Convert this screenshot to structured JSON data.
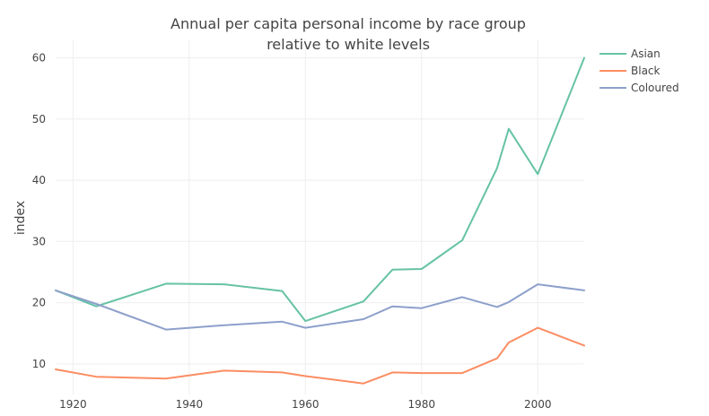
{
  "chart_data": {
    "type": "line",
    "title_lines": [
      "Annual per capita personal income by race group",
      "relative to white levels"
    ],
    "xlabel": "",
    "ylabel": "index",
    "xlim": [
      1917,
      2008
    ],
    "ylim": [
      5,
      63
    ],
    "x_ticks": [
      1920,
      1940,
      1960,
      1980,
      2000
    ],
    "y_ticks": [
      10,
      20,
      30,
      40,
      50,
      60
    ],
    "grid": true,
    "legend_position": "top-right",
    "series": [
      {
        "name": "Asian",
        "color": "#66c2a5",
        "x": [
          1917,
          1924,
          1936,
          1946,
          1956,
          1960,
          1970,
          1975,
          1980,
          1987,
          1993,
          1995,
          2000,
          2008
        ],
        "y": [
          22.0,
          19.4,
          23.1,
          23.0,
          21.9,
          17.0,
          20.2,
          25.4,
          25.5,
          30.2,
          42.0,
          48.4,
          41.0,
          60.0
        ]
      },
      {
        "name": "Black",
        "color": "#fc8d62",
        "x": [
          1917,
          1924,
          1936,
          1946,
          1956,
          1960,
          1970,
          1975,
          1980,
          1987,
          1993,
          1995,
          2000,
          2008
        ],
        "y": [
          9.1,
          7.9,
          7.6,
          8.9,
          8.6,
          8.0,
          6.8,
          8.6,
          8.5,
          8.5,
          10.9,
          13.5,
          15.9,
          13.0
        ]
      },
      {
        "name": "Coloured",
        "color": "#8da0cb",
        "x": [
          1917,
          1924,
          1936,
          1946,
          1956,
          1960,
          1970,
          1975,
          1980,
          1987,
          1993,
          1995,
          2000,
          2008
        ],
        "y": [
          22.0,
          19.8,
          15.6,
          16.3,
          16.9,
          15.9,
          17.3,
          19.4,
          19.1,
          20.9,
          19.3,
          20.1,
          23.0,
          22.0
        ]
      }
    ]
  }
}
